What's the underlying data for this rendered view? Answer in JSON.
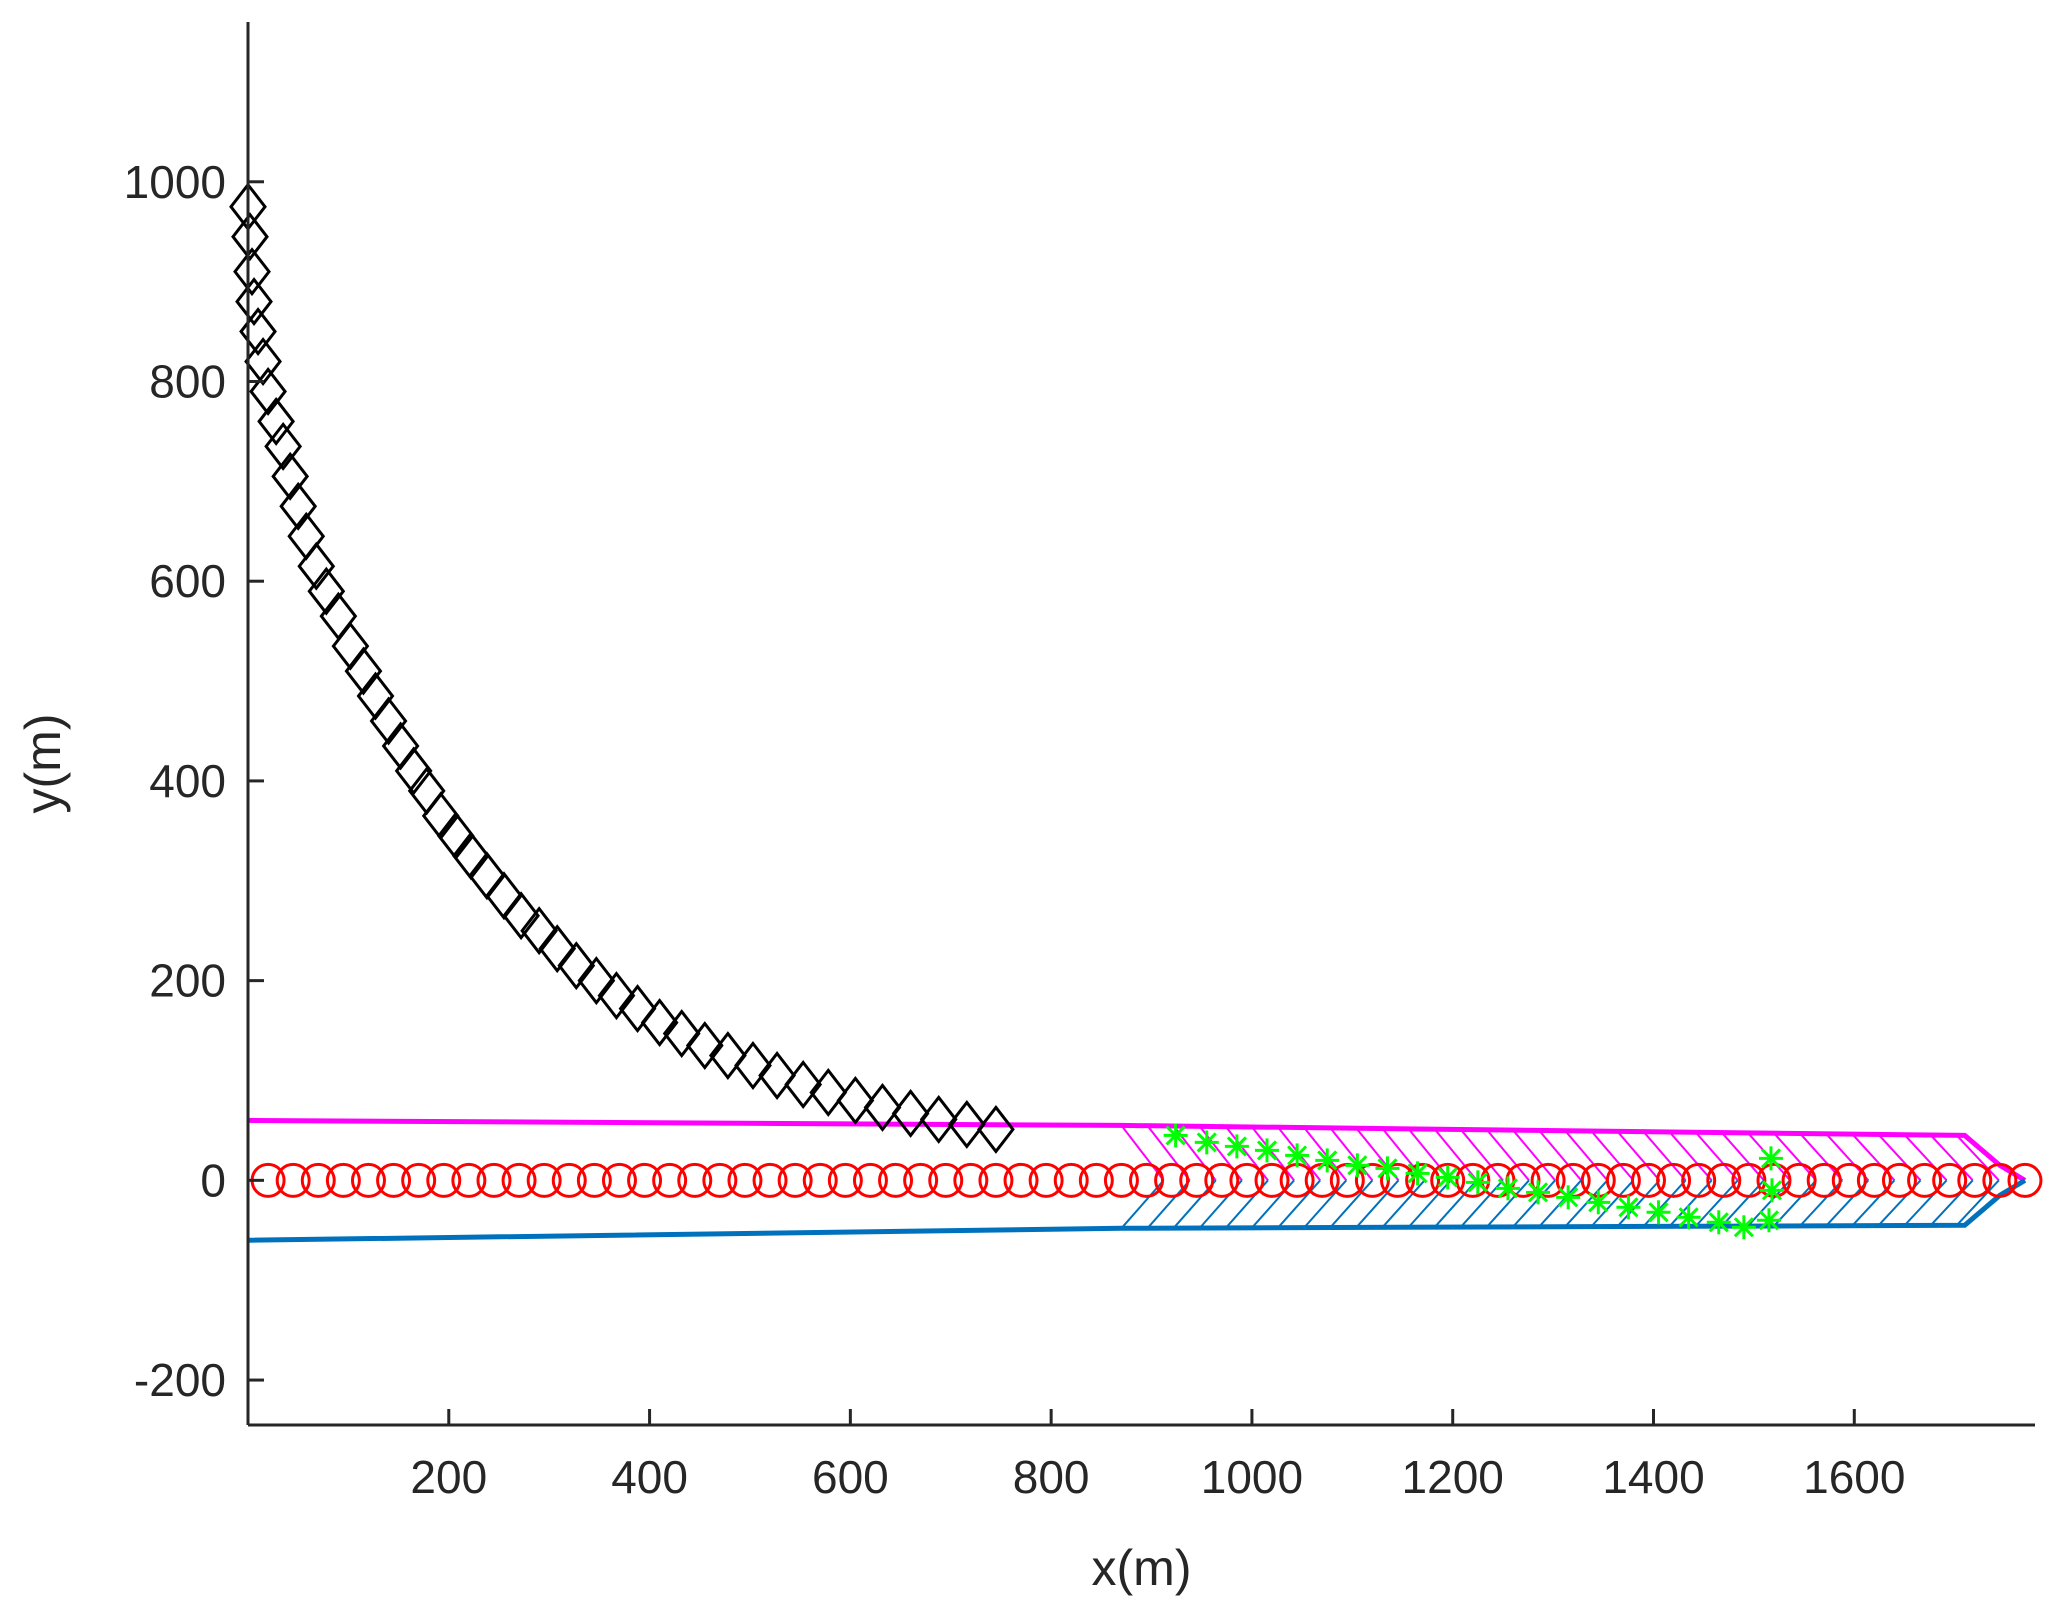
{
  "chart_data": {
    "type": "scatter",
    "xlabel": "x(m)",
    "ylabel": "y(m)",
    "xlim": [
      0,
      1780
    ],
    "ylim": [
      -245,
      1160
    ],
    "xticks": [
      200,
      400,
      600,
      800,
      1000,
      1200,
      1400,
      1600
    ],
    "yticks": [
      -200,
      0,
      200,
      400,
      600,
      800,
      1000
    ],
    "xtick_labels": [
      "200",
      "400",
      "600",
      "800",
      "1000",
      "1200",
      "1400",
      "1600"
    ],
    "ytick_labels": [
      "-200",
      "0",
      "200",
      "400",
      "600",
      "800",
      "1000"
    ],
    "grid": false,
    "colors": {
      "diamond": "#000000",
      "circle": "#ff0000",
      "star": "#00ff00",
      "upper_band": "#ff00ff",
      "lower_band": "#0072bd",
      "axis": "#262626"
    },
    "series": [
      {
        "marker": "diamond",
        "color": "#000000",
        "points": [
          [
            0,
            975
          ],
          [
            2,
            945
          ],
          [
            4,
            910
          ],
          [
            6,
            880
          ],
          [
            10,
            850
          ],
          [
            15,
            820
          ],
          [
            20,
            790
          ],
          [
            28,
            760
          ],
          [
            35,
            735
          ],
          [
            42,
            705
          ],
          [
            50,
            675
          ],
          [
            58,
            645
          ],
          [
            68,
            615
          ],
          [
            78,
            590
          ],
          [
            90,
            565
          ],
          [
            102,
            535
          ],
          [
            115,
            510
          ],
          [
            127,
            485
          ],
          [
            140,
            460
          ],
          [
            152,
            435
          ],
          [
            165,
            410
          ],
          [
            178,
            390
          ],
          [
            192,
            365
          ],
          [
            207,
            345
          ],
          [
            222,
            325
          ],
          [
            238,
            305
          ],
          [
            255,
            285
          ],
          [
            272,
            265
          ],
          [
            290,
            250
          ],
          [
            308,
            232
          ],
          [
            327,
            215
          ],
          [
            347,
            200
          ],
          [
            367,
            185
          ],
          [
            388,
            172
          ],
          [
            410,
            158
          ],
          [
            432,
            147
          ],
          [
            455,
            135
          ],
          [
            478,
            125
          ],
          [
            503,
            115
          ],
          [
            527,
            105
          ],
          [
            553,
            96
          ],
          [
            578,
            88
          ],
          [
            605,
            80
          ],
          [
            632,
            73
          ],
          [
            660,
            67
          ],
          [
            688,
            61
          ],
          [
            716,
            56
          ],
          [
            745,
            51
          ]
        ]
      },
      {
        "marker": "circle",
        "color": "#ff0000",
        "points": [
          [
            20,
            0
          ],
          [
            45,
            0
          ],
          [
            70,
            0
          ],
          [
            95,
            0
          ],
          [
            120,
            0
          ],
          [
            145,
            0
          ],
          [
            170,
            0
          ],
          [
            195,
            0
          ],
          [
            220,
            0
          ],
          [
            245,
            0
          ],
          [
            270,
            0
          ],
          [
            295,
            0
          ],
          [
            320,
            0
          ],
          [
            345,
            0
          ],
          [
            370,
            0
          ],
          [
            395,
            0
          ],
          [
            420,
            0
          ],
          [
            445,
            0
          ],
          [
            470,
            0
          ],
          [
            495,
            0
          ],
          [
            520,
            0
          ],
          [
            545,
            0
          ],
          [
            570,
            0
          ],
          [
            595,
            0
          ],
          [
            620,
            0
          ],
          [
            645,
            0
          ],
          [
            670,
            0
          ],
          [
            695,
            0
          ],
          [
            720,
            0
          ],
          [
            745,
            0
          ],
          [
            770,
            0
          ],
          [
            795,
            0
          ],
          [
            820,
            0
          ],
          [
            845,
            0
          ],
          [
            870,
            0
          ],
          [
            895,
            0
          ],
          [
            920,
            0
          ],
          [
            945,
            0
          ],
          [
            970,
            0
          ],
          [
            995,
            0
          ],
          [
            1020,
            0
          ],
          [
            1045,
            0
          ],
          [
            1070,
            0
          ],
          [
            1095,
            0
          ],
          [
            1120,
            0
          ],
          [
            1145,
            0
          ],
          [
            1170,
            0
          ],
          [
            1195,
            0
          ],
          [
            1220,
            0
          ],
          [
            1245,
            0
          ],
          [
            1270,
            0
          ],
          [
            1295,
            0
          ],
          [
            1320,
            0
          ],
          [
            1345,
            0
          ],
          [
            1370,
            0
          ],
          [
            1395,
            0
          ],
          [
            1420,
            0
          ],
          [
            1445,
            0
          ],
          [
            1470,
            0
          ],
          [
            1495,
            0
          ],
          [
            1520,
            0
          ],
          [
            1545,
            0
          ],
          [
            1570,
            0
          ],
          [
            1595,
            0
          ],
          [
            1620,
            0
          ],
          [
            1645,
            0
          ],
          [
            1670,
            0
          ],
          [
            1695,
            0
          ],
          [
            1720,
            0
          ],
          [
            1745,
            0
          ],
          [
            1770,
            0
          ]
        ]
      },
      {
        "marker": "star",
        "color": "#00ff00",
        "points": [
          [
            924,
            45
          ],
          [
            955,
            38
          ],
          [
            985,
            34
          ],
          [
            1015,
            30
          ],
          [
            1045,
            25
          ],
          [
            1075,
            20
          ],
          [
            1105,
            15
          ],
          [
            1135,
            12
          ],
          [
            1165,
            7
          ],
          [
            1195,
            3
          ],
          [
            1225,
            -2
          ],
          [
            1255,
            -8
          ],
          [
            1285,
            -12
          ],
          [
            1315,
            -17
          ],
          [
            1345,
            -22
          ],
          [
            1375,
            -27
          ],
          [
            1405,
            -32
          ],
          [
            1435,
            -37
          ],
          [
            1465,
            -42
          ],
          [
            1490,
            -47
          ],
          [
            1515,
            -40
          ],
          [
            1518,
            -10
          ],
          [
            1517,
            22
          ]
        ]
      }
    ],
    "bands": [
      {
        "fill": "hatched",
        "color": "#ff00ff",
        "polygon": [
          [
            0,
            60
          ],
          [
            870,
            55
          ],
          [
            1710,
            45
          ],
          [
            1745,
            15
          ],
          [
            1770,
            0
          ],
          [
            920,
            0
          ]
        ],
        "hatch_start": 870
      },
      {
        "fill": "hatched",
        "color": "#0072bd",
        "polygon": [
          [
            0,
            -60
          ],
          [
            870,
            -48
          ],
          [
            1710,
            -45
          ],
          [
            1745,
            -15
          ],
          [
            1770,
            0
          ],
          [
            920,
            0
          ]
        ],
        "hatch_start": 870
      }
    ]
  }
}
